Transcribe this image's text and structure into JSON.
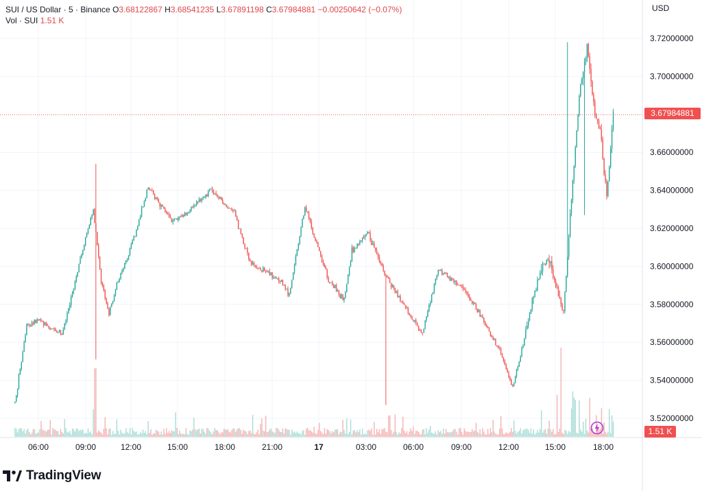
{
  "legend": {
    "symbol": "SUI / US Dollar · 5 · Binance",
    "o_label": "O",
    "o_value": "3.68122867",
    "h_label": "H",
    "h_value": "3.68541235",
    "l_label": "L",
    "l_value": "3.67891198",
    "c_label": "C",
    "c_value": "3.67984881",
    "change": "−0.00250642 (−0.07%)",
    "vol_label": "Vol · SUI",
    "vol_value": "1.51 K"
  },
  "currency": "USD",
  "last_price_tag": "3.67984881",
  "volume_tag": "1.51 K",
  "brand": "TradingView",
  "colors": {
    "up": "#26a69a",
    "down": "#ef5350",
    "tag": "#f05050",
    "grid": "#f0f3fa"
  },
  "chart_data": {
    "type": "candlestick",
    "x_tick_labels": [
      "06:00",
      "09:00",
      "12:00",
      "15:00",
      "18:00",
      "21:00",
      "17",
      "03:00",
      "06:00",
      "09:00",
      "12:00",
      "15:00",
      "18:00"
    ],
    "y_tick_labels": [
      "3.72000000",
      "3.70000000",
      "3.66000000",
      "3.64000000",
      "3.62000000",
      "3.60000000",
      "3.58000000",
      "3.56000000",
      "3.54000000",
      "3.52000000"
    ],
    "y_ticks": [
      3.72,
      3.7,
      3.66,
      3.64,
      3.62,
      3.6,
      3.58,
      3.56,
      3.54,
      3.52
    ],
    "ylim": [
      3.508,
      3.742
    ],
    "last_price": 3.67984881,
    "x_axis": "time of day (5-minute bars)",
    "close_path": [
      {
        "t": "04:30",
        "p": 3.528
      },
      {
        "t": "05:15",
        "p": 3.568
      },
      {
        "t": "06:00",
        "p": 3.572
      },
      {
        "t": "07:30",
        "p": 3.564
      },
      {
        "t": "08:30",
        "p": 3.598
      },
      {
        "t": "09:30",
        "p": 3.63
      },
      {
        "t": "10:00",
        "p": 3.592
      },
      {
        "t": "10:30",
        "p": 3.575
      },
      {
        "t": "11:00",
        "p": 3.59
      },
      {
        "t": "12:00",
        "p": 3.612
      },
      {
        "t": "13:00",
        "p": 3.642
      },
      {
        "t": "14:30",
        "p": 3.624
      },
      {
        "t": "15:30",
        "p": 3.628
      },
      {
        "t": "17:00",
        "p": 3.64
      },
      {
        "t": "18:30",
        "p": 3.628
      },
      {
        "t": "19:30",
        "p": 3.602
      },
      {
        "t": "21:30",
        "p": 3.592
      },
      {
        "t": "22:00",
        "p": 3.585
      },
      {
        "t": "23:00",
        "p": 3.632
      },
      {
        "t": "23:30",
        "p": 3.618
      },
      {
        "t": "00:30",
        "p": 3.593
      },
      {
        "t": "01:30",
        "p": 3.582
      },
      {
        "t": "02:00",
        "p": 3.608
      },
      {
        "t": "03:00",
        "p": 3.618
      },
      {
        "t": "04:00",
        "p": 3.598
      },
      {
        "t": "05:00",
        "p": 3.583
      },
      {
        "t": "06:30",
        "p": 3.565
      },
      {
        "t": "07:30",
        "p": 3.598
      },
      {
        "t": "09:00",
        "p": 3.59
      },
      {
        "t": "10:30",
        "p": 3.57
      },
      {
        "t": "11:30",
        "p": 3.555
      },
      {
        "t": "12:15",
        "p": 3.536
      },
      {
        "t": "13:00",
        "p": 3.562
      },
      {
        "t": "14:00",
        "p": 3.598
      },
      {
        "t": "14:30",
        "p": 3.605
      },
      {
        "t": "15:30",
        "p": 3.575
      },
      {
        "t": "16:00",
        "p": 3.635
      },
      {
        "t": "16:30",
        "p": 3.69
      },
      {
        "t": "17:00",
        "p": 3.715
      },
      {
        "t": "17:30",
        "p": 3.68
      },
      {
        "t": "17:50",
        "p": 3.672
      },
      {
        "t": "18:15",
        "p": 3.636
      },
      {
        "t": "18:40",
        "p": 3.68
      }
    ]
  }
}
